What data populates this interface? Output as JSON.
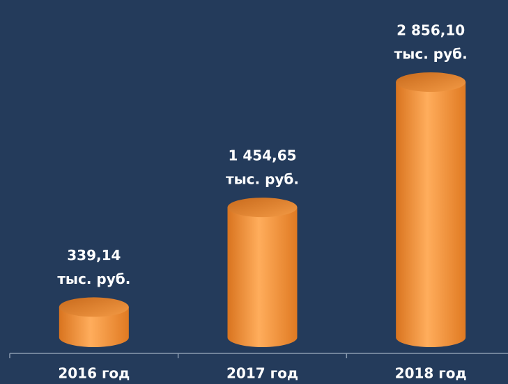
{
  "chart_data": {
    "type": "bar",
    "categories": [
      "2016 год",
      "2017 год",
      "2018 год"
    ],
    "values": [
      339.14,
      1454.65,
      2856.1
    ],
    "value_labels": [
      "339,14",
      "1 454,65",
      "2 856,10"
    ],
    "unit": "тыс. руб.",
    "color": "#f0923a"
  }
}
